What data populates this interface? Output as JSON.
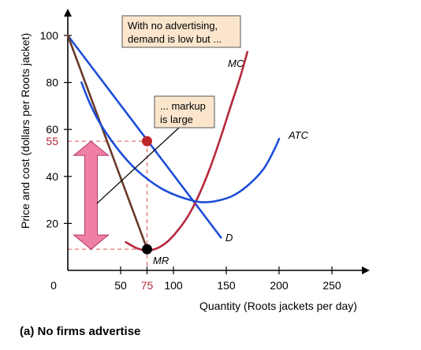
{
  "chart_data": {
    "type": "line",
    "caption": "(a) No firms advertise",
    "xlabel": "Quantity (Roots jackets per day)",
    "ylabel": "Price and cost (dollars per Roots jacket)",
    "xlim": [
      0,
      270
    ],
    "ylim": [
      0,
      108
    ],
    "x_ticks": [
      {
        "value": 0,
        "label": "0"
      },
      {
        "value": 50,
        "label": "50"
      },
      {
        "value": 75,
        "label": "75"
      },
      {
        "value": 100,
        "label": "100"
      },
      {
        "value": 150,
        "label": "150"
      },
      {
        "value": 200,
        "label": "200"
      },
      {
        "value": 250,
        "label": "250"
      }
    ],
    "y_ticks": [
      {
        "value": 20,
        "label": "20"
      },
      {
        "value": 40,
        "label": "40"
      },
      {
        "value": 60,
        "label": "60"
      },
      {
        "value": 80,
        "label": "80"
      },
      {
        "value": 100,
        "label": "100"
      }
    ],
    "highlight_x": {
      "value": 75,
      "label": "75"
    },
    "highlight_y": {
      "value": 55,
      "label": "55"
    },
    "series": [
      {
        "name": "D",
        "color": "#1d4ed8",
        "points": [
          [
            0,
            100
          ],
          [
            145,
            14
          ]
        ]
      },
      {
        "name": "MR",
        "color": "#6b3a2a",
        "points": [
          [
            0,
            100
          ],
          [
            76,
            8
          ]
        ]
      },
      {
        "name": "MC",
        "color": "#b5283c",
        "points": [
          [
            55,
            12
          ],
          [
            65,
            9.5
          ],
          [
            75,
            8.5
          ],
          [
            85,
            9.5
          ],
          [
            95,
            12.5
          ],
          [
            105,
            17.5
          ],
          [
            115,
            24
          ],
          [
            125,
            33
          ],
          [
            135,
            44
          ],
          [
            145,
            57
          ],
          [
            155,
            71
          ],
          [
            163,
            82
          ],
          [
            170,
            93
          ]
        ]
      },
      {
        "name": "ATC",
        "color": "#1d4ed8",
        "points": [
          [
            13,
            80
          ],
          [
            20,
            72
          ],
          [
            30,
            63
          ],
          [
            45,
            53
          ],
          [
            60,
            45
          ],
          [
            75,
            39
          ],
          [
            90,
            34.5
          ],
          [
            105,
            31.5
          ],
          [
            120,
            29.5
          ],
          [
            128,
            29
          ],
          [
            140,
            29.5
          ],
          [
            155,
            31.5
          ],
          [
            170,
            36
          ],
          [
            185,
            43
          ],
          [
            195,
            51
          ],
          [
            200,
            56
          ]
        ]
      }
    ],
    "points": [
      {
        "name": "price-point",
        "x": 75,
        "y": 55,
        "color": "#c0262c"
      },
      {
        "name": "mc-mr-point",
        "x": 75,
        "y": 9,
        "color": "#000000"
      }
    ],
    "markup_arrow": {
      "from": 9,
      "to": 55,
      "x": 22,
      "color": "#f07fa6"
    },
    "annotations": [
      {
        "id": "no-advertising",
        "lines": [
          "With no advertising,",
          "demand is low but ..."
        ]
      },
      {
        "id": "markup",
        "lines": [
          "... markup",
          "is large"
        ]
      }
    ]
  }
}
